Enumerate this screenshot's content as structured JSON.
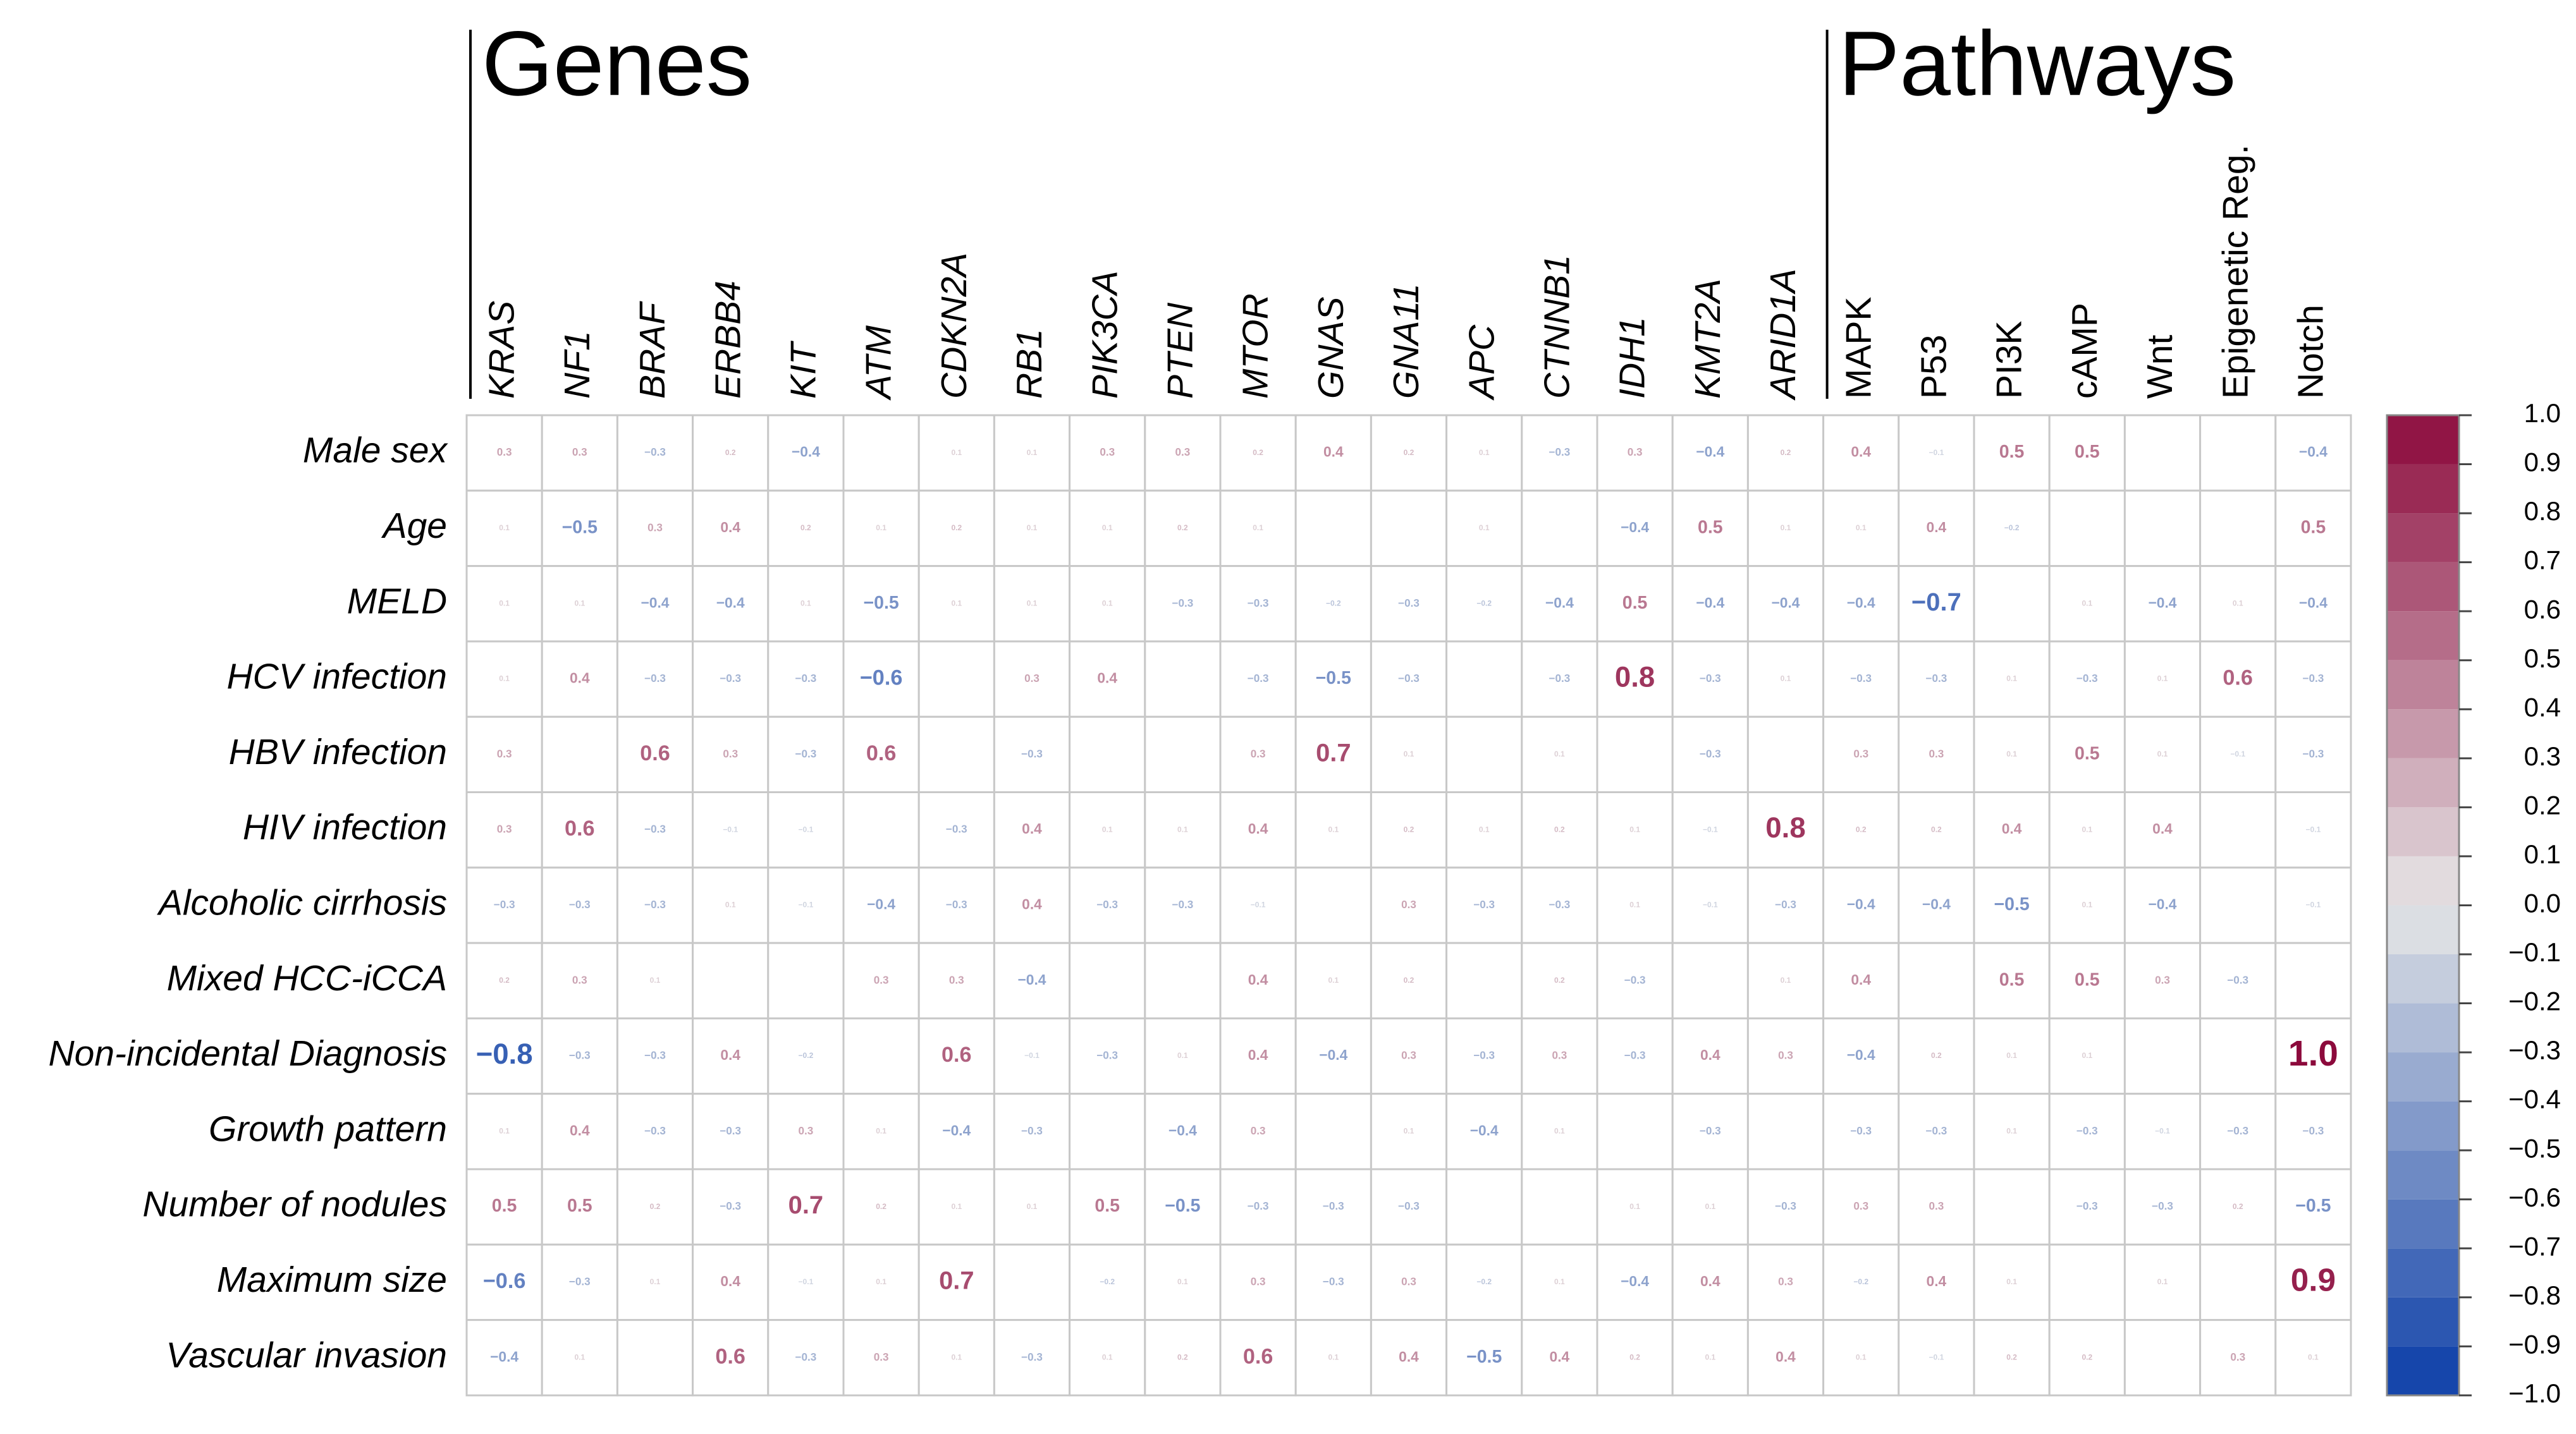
{
  "chart_data": {
    "type": "heatmap",
    "column_groups": [
      {
        "title": "Genes",
        "italic": true,
        "columns": [
          "KRAS",
          "NF1",
          "BRAF",
          "ERBB4",
          "KIT",
          "ATM",
          "CDKN2A",
          "RB1",
          "PIK3CA",
          "PTEN",
          "MTOR",
          "GNAS",
          "GNA11",
          "APC",
          "CTNNB1",
          "IDH1",
          "KMT2A",
          "ARID1A"
        ]
      },
      {
        "title": "Pathways",
        "italic": false,
        "columns": [
          "MAPK",
          "P53",
          "PI3K",
          "cAMP",
          "Wnt",
          "Epigenetic Reg.",
          "Notch"
        ]
      }
    ],
    "rows": [
      "Male sex",
      "Age",
      "MELD",
      "HCV infection",
      "HBV infection",
      "HIV infection",
      "Alcoholic cirrhosis",
      "Mixed HCC-iCCA",
      "Non-incidental Diagnosis",
      "Growth pattern",
      "Number of nodules",
      "Maximum size",
      "Vascular invasion"
    ],
    "values": [
      [
        0.3,
        0.3,
        -0.3,
        0.2,
        -0.4,
        null,
        0.1,
        0.1,
        0.3,
        0.3,
        0.2,
        0.4,
        0.2,
        0.1,
        -0.3,
        0.3,
        -0.4,
        0.2,
        0.4,
        -0.1,
        0.5,
        0.5,
        null,
        null,
        -0.4
      ],
      [
        0.1,
        -0.5,
        0.3,
        0.4,
        0.2,
        0.1,
        0.2,
        0.1,
        0.1,
        0.2,
        0.1,
        null,
        null,
        0.1,
        null,
        -0.4,
        0.5,
        0.1,
        0.1,
        0.4,
        -0.2,
        null,
        null,
        null,
        0.5
      ],
      [
        0.1,
        0.1,
        -0.4,
        -0.4,
        0.1,
        -0.5,
        0.1,
        0.1,
        0.1,
        -0.3,
        -0.3,
        -0.2,
        -0.3,
        -0.2,
        -0.4,
        0.5,
        -0.4,
        -0.4,
        -0.4,
        -0.7,
        null,
        0.1,
        -0.4,
        0.1,
        -0.4
      ],
      [
        0.1,
        0.4,
        -0.3,
        -0.3,
        -0.3,
        -0.6,
        null,
        0.3,
        0.4,
        null,
        -0.3,
        -0.5,
        -0.3,
        null,
        -0.3,
        0.8,
        -0.3,
        0.1,
        -0.3,
        -0.3,
        0.1,
        -0.3,
        0.1,
        0.6,
        -0.3
      ],
      [
        0.3,
        null,
        0.6,
        0.3,
        -0.3,
        0.6,
        null,
        -0.3,
        null,
        null,
        0.3,
        0.7,
        0.1,
        null,
        0.1,
        null,
        -0.3,
        null,
        0.3,
        0.3,
        0.1,
        0.5,
        0.1,
        -0.1,
        -0.3
      ],
      [
        0.3,
        0.6,
        -0.3,
        -0.1,
        -0.1,
        null,
        -0.3,
        0.4,
        0.1,
        0.1,
        0.4,
        0.1,
        0.2,
        0.1,
        0.2,
        0.1,
        -0.1,
        0.8,
        0.2,
        0.2,
        0.4,
        0.1,
        0.4,
        null,
        -0.1
      ],
      [
        -0.3,
        -0.3,
        -0.3,
        0.1,
        -0.1,
        -0.4,
        -0.3,
        0.4,
        -0.3,
        -0.3,
        -0.1,
        null,
        0.3,
        -0.3,
        -0.3,
        0.1,
        -0.1,
        -0.3,
        -0.4,
        -0.4,
        -0.5,
        0.1,
        -0.4,
        null,
        -0.1
      ],
      [
        0.2,
        0.3,
        0.1,
        null,
        null,
        0.3,
        0.3,
        -0.4,
        null,
        null,
        0.4,
        0.1,
        0.2,
        null,
        0.2,
        -0.3,
        null,
        0.1,
        0.4,
        null,
        0.5,
        0.5,
        0.3,
        -0.3,
        null
      ],
      [
        -0.8,
        -0.3,
        -0.3,
        0.4,
        -0.2,
        null,
        0.6,
        -0.1,
        -0.3,
        0.1,
        0.4,
        -0.4,
        0.3,
        -0.3,
        0.3,
        -0.3,
        0.4,
        0.3,
        -0.4,
        0.2,
        0.1,
        0.1,
        null,
        null,
        1.0
      ],
      [
        0.1,
        0.4,
        -0.3,
        -0.3,
        0.3,
        0.1,
        -0.4,
        -0.3,
        null,
        -0.4,
        0.3,
        null,
        0.1,
        -0.4,
        0.1,
        null,
        -0.3,
        null,
        -0.3,
        -0.3,
        0.1,
        -0.3,
        -0.1,
        -0.3,
        -0.3
      ],
      [
        0.5,
        0.5,
        0.2,
        -0.3,
        0.7,
        0.2,
        0.1,
        0.1,
        0.5,
        -0.5,
        -0.3,
        -0.3,
        -0.3,
        null,
        null,
        0.1,
        0.1,
        -0.3,
        0.3,
        0.3,
        null,
        -0.3,
        -0.3,
        0.2,
        -0.5
      ],
      [
        -0.6,
        -0.3,
        0.1,
        0.4,
        -0.1,
        0.1,
        0.7,
        null,
        -0.2,
        0.1,
        0.3,
        -0.3,
        0.3,
        -0.2,
        0.1,
        -0.4,
        0.4,
        0.3,
        -0.2,
        0.4,
        0.1,
        null,
        0.1,
        null,
        0.9
      ],
      [
        -0.4,
        0.1,
        null,
        0.6,
        -0.3,
        0.3,
        0.1,
        -0.3,
        0.1,
        0.2,
        0.6,
        0.1,
        0.4,
        -0.5,
        0.4,
        0.2,
        0.1,
        0.4,
        0.1,
        -0.1,
        0.2,
        0.2,
        null,
        0.3,
        0.1
      ]
    ],
    "value_labels": [
      [
        "0.3",
        "0.3",
        "−0.3",
        "0.2",
        "−0.4",
        null,
        "0.1",
        "0.1",
        "0.3",
        "0.3",
        "0.2",
        "0.4",
        "0.2",
        "0.1",
        "−0.3",
        "0.3",
        "−0.4",
        "0.2",
        "0.4",
        "−0.1",
        "0.5",
        "0.5",
        null,
        null,
        "−0.4"
      ],
      [
        "0.1",
        "−0.5",
        "0.3",
        "0.4",
        "0.2",
        "0.1",
        "0.2",
        "0.1",
        "0.1",
        "0.2",
        "0.1",
        null,
        null,
        "0.1",
        null,
        "−0.4",
        "0.5",
        "0.1",
        "0.1",
        "0.4",
        "−0.2",
        null,
        null,
        null,
        "0.5"
      ],
      [
        "0.1",
        "0.1",
        "−0.4",
        "−0.4",
        "0.1",
        "−0.5",
        "0.1",
        "0.1",
        "0.1",
        "−0.3",
        "−0.3",
        "−0.2",
        "−0.3",
        "−0.2",
        "−0.4",
        "0.5",
        "−0.4",
        "−0.4",
        "−0.4",
        "−0.7",
        null,
        "0.1",
        "−0.4",
        "0.1",
        "−0.4"
      ],
      [
        "0.1",
        "0.4",
        "−0.3",
        "−0.3",
        "−0.3",
        "−0.6",
        null,
        "0.3",
        "0.4",
        null,
        "−0.3",
        "−0.5",
        "−0.3",
        null,
        "−0.3",
        "0.8",
        "−0.3",
        "0.1",
        "−0.3",
        "−0.3",
        "0.1",
        "−0.3",
        "0.1",
        "0.6",
        "−0.3"
      ],
      [
        "0.3",
        null,
        "0.6",
        "0.3",
        "−0.3",
        "0.6",
        null,
        "−0.3",
        null,
        null,
        "0.3",
        "0.7",
        "0.1",
        null,
        "0.1",
        null,
        "−0.3",
        null,
        "0.3",
        "0.3",
        "0.1",
        "0.5",
        "0.1",
        "−0.1",
        "−0.3"
      ],
      [
        "0.3",
        "0.6",
        "−0.3",
        "−0.1",
        "−0.1",
        null,
        "−0.3",
        "0.4",
        "0.1",
        "0.1",
        "0.4",
        "0.1",
        "0.2",
        "0.1",
        "0.2",
        "0.1",
        "−0.1",
        "0.8",
        "0.2",
        "0.2",
        "0.4",
        "0.1",
        "0.4",
        null,
        "−0.1"
      ],
      [
        "−0.3",
        "−0.3",
        "−0.3",
        "0.1",
        "−0.1",
        "−0.4",
        "−0.3",
        "0.4",
        "−0.3",
        "−0.3",
        "−0.1",
        null,
        "0.3",
        "−0.3",
        "−0.3",
        "0.1",
        "−0.1",
        "−0.3",
        "−0.4",
        "−0.4",
        "−0.5",
        "0.1",
        "−0.4",
        null,
        "−0.1"
      ],
      [
        "0.2",
        "0.3",
        "0.1",
        null,
        null,
        "0.3",
        "0.3",
        "−0.4",
        null,
        null,
        "0.4",
        "0.1",
        "0.2",
        null,
        "0.2",
        "−0.3",
        null,
        "0.1",
        "0.4",
        null,
        "0.5",
        "0.5",
        "0.3",
        "−0.3",
        null
      ],
      [
        "−0.8",
        "−0.3",
        "−0.3",
        "0.4",
        "−0.2",
        null,
        "0.6",
        "−0.1",
        "−0.3",
        "0.1",
        "0.4",
        "−0.4",
        "0.3",
        "−0.3",
        "0.3",
        "−0.3",
        "0.4",
        "0.3",
        "−0.4",
        "0.2",
        "0.1",
        "0.1",
        null,
        null,
        "1.0"
      ],
      [
        "0.1",
        "0.4",
        "−0.3",
        "−0.3",
        "0.3",
        "0.1",
        "−0.4",
        "−0.3",
        null,
        "−0.4",
        "0.3",
        null,
        "0.1",
        "−0.4",
        "0.1",
        null,
        "−0.3",
        null,
        "−0.3",
        "−0.3",
        "0.1",
        "−0.3",
        "−0.1",
        "−0.3",
        "−0.3"
      ],
      [
        "0.5",
        "0.5",
        "0.2",
        "−0.3",
        "0.7",
        "0.2",
        "0.1",
        "0.1",
        "0.5",
        "−0.5",
        "−0.3",
        "−0.3",
        "−0.3",
        null,
        null,
        "0.1",
        "0.1",
        "−0.3",
        "0.3",
        "0.3",
        null,
        "−0.3",
        "−0.3",
        "0.2",
        "−0.5"
      ],
      [
        "−0.6",
        "−0.3",
        "0.1",
        "0.4",
        "−0.1",
        "0.1",
        "0.7",
        null,
        "−0.2",
        "0.1",
        "0.3",
        "−0.3",
        "0.3",
        "−0.2",
        "0.1",
        "−0.4",
        "0.4",
        "0.3",
        "−0.2",
        "0.4",
        "0.1",
        null,
        "0.1",
        null,
        "0.9"
      ],
      [
        "−0.4",
        "0.1",
        null,
        "0.6",
        "−0.3",
        "0.3",
        "0.1",
        "−0.3",
        "0.1",
        "0.2",
        "0.6",
        "0.1",
        "0.4",
        "−0.5",
        "0.4",
        "0.2",
        "0.1",
        "0.4",
        "0.1",
        "−0.1",
        "0.2",
        "0.2",
        null,
        "0.3",
        "0.1"
      ]
    ],
    "clim": [
      -1,
      1
    ],
    "cticks": [
      {
        "value": -1,
        "label": "−1.0"
      },
      {
        "value": -0.9,
        "label": "−0.9"
      },
      {
        "value": -0.8,
        "label": "−0.8"
      },
      {
        "value": -0.7,
        "label": "−0.7"
      },
      {
        "value": -0.6,
        "label": "−0.6"
      },
      {
        "value": -0.5,
        "label": "−0.5"
      },
      {
        "value": -0.4,
        "label": "−0.4"
      },
      {
        "value": -0.3,
        "label": "−0.3"
      },
      {
        "value": -0.2,
        "label": "−0.2"
      },
      {
        "value": -0.1,
        "label": "−0.1"
      },
      {
        "value": 0,
        "label": "0.0"
      },
      0.1,
      0.2,
      0.3,
      0.4,
      0.5,
      0.6,
      0.7,
      0.8,
      0.9,
      {
        "value": 1,
        "label": "1.0"
      }
    ],
    "colors": {
      "low": "#0b3ea8",
      "mid": "#e6e6e6",
      "high": "#8c0a3c"
    }
  }
}
